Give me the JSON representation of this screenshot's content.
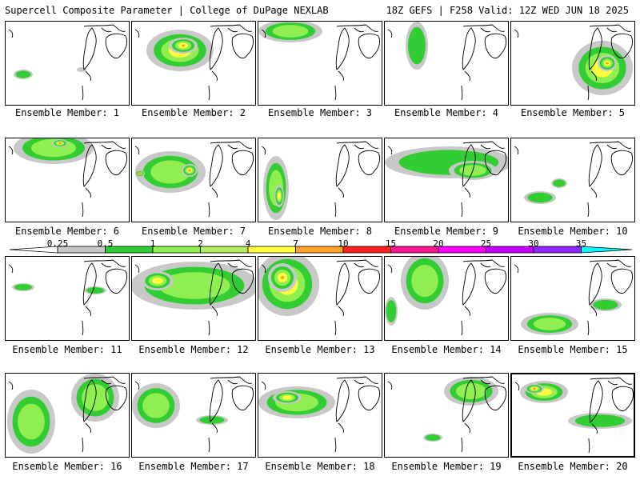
{
  "header": {
    "left": "Supercell Composite Parameter | College of DuPage NEXLAB",
    "right": "18Z GEFS | F258 Valid: 12Z WED JUN 18 2025"
  },
  "legend": {
    "ticks": [
      "0.25",
      "0.5",
      "1",
      "2",
      "4",
      "7",
      "10",
      "15",
      "20",
      "25",
      "30",
      "35"
    ],
    "colors": [
      "#c8c8c8",
      "#32cd32",
      "#90ee50",
      "#b4ee64",
      "#ffff3c",
      "#ffa028",
      "#ff2020",
      "#ff1493",
      "#ff00ff",
      "#c800ff",
      "#8c28ff",
      "#00ffff"
    ]
  },
  "members": [
    {
      "label": "Ensemble Member: 1"
    },
    {
      "label": "Ensemble Member: 2"
    },
    {
      "label": "Ensemble Member: 3"
    },
    {
      "label": "Ensemble Member: 4"
    },
    {
      "label": "Ensemble Member: 5"
    },
    {
      "label": "Ensemble Member: 6"
    },
    {
      "label": "Ensemble Member: 7"
    },
    {
      "label": "Ensemble Member: 8"
    },
    {
      "label": "Ensemble Member: 9"
    },
    {
      "label": "Ensemble Member: 10"
    },
    {
      "label": "Ensemble Member: 11"
    },
    {
      "label": "Ensemble Member: 12"
    },
    {
      "label": "Ensemble Member: 13"
    },
    {
      "label": "Ensemble Member: 14"
    },
    {
      "label": "Ensemble Member: 15"
    },
    {
      "label": "Ensemble Member: 16"
    },
    {
      "label": "Ensemble Member: 17"
    },
    {
      "label": "Ensemble Member: 18"
    },
    {
      "label": "Ensemble Member: 19"
    },
    {
      "label": "Ensemble Member: 20"
    }
  ]
}
